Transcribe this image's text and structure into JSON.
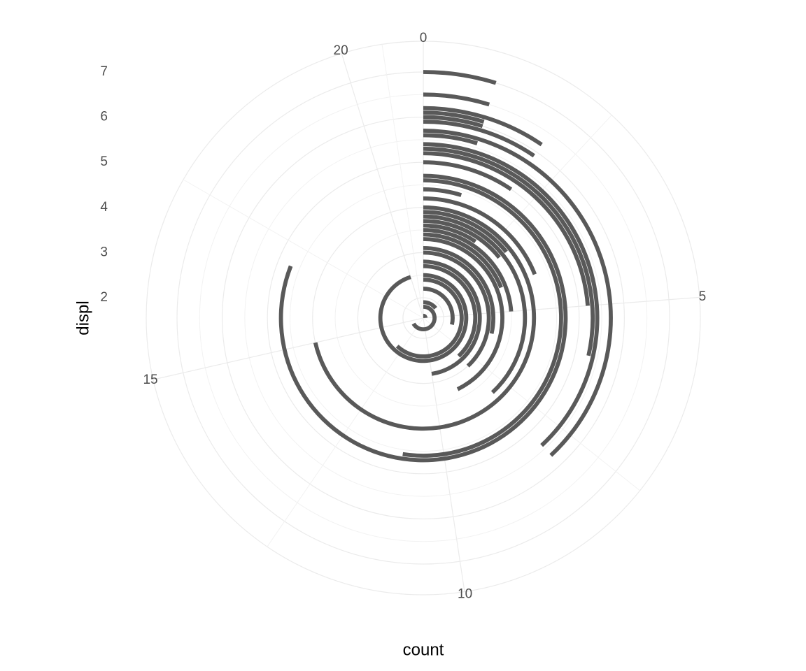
{
  "chart_data": {
    "type": "polar_bar",
    "x_label": "displ",
    "y_label": "count",
    "x": [
      1.6,
      1.8,
      1.9,
      2.0,
      2.2,
      2.4,
      2.5,
      2.7,
      2.8,
      3.0,
      3.1,
      3.3,
      3.4,
      3.5,
      3.6,
      3.7,
      3.8,
      3.9,
      4.0,
      4.2,
      4.4,
      4.6,
      4.7,
      5.0,
      5.2,
      5.3,
      5.4,
      5.6,
      5.7,
      5.9,
      6.0,
      6.1,
      6.2,
      6.5,
      7.0
    ],
    "values": [
      5,
      14,
      3,
      21,
      6,
      13,
      20,
      8,
      10,
      8,
      6,
      9,
      4,
      5,
      2,
      3,
      8,
      3,
      15,
      4,
      1,
      11,
      17,
      2,
      5,
      6,
      8,
      1,
      8,
      2,
      1,
      1,
      2,
      1,
      1
    ],
    "color": "#595959",
    "xlim": [
      1.55,
      7.0
    ],
    "xticks": [
      2,
      3,
      4,
      5,
      6,
      7
    ],
    "ylim": [
      0,
      21
    ],
    "yticks": [
      0,
      5,
      10,
      15,
      20
    ],
    "grid": true
  }
}
